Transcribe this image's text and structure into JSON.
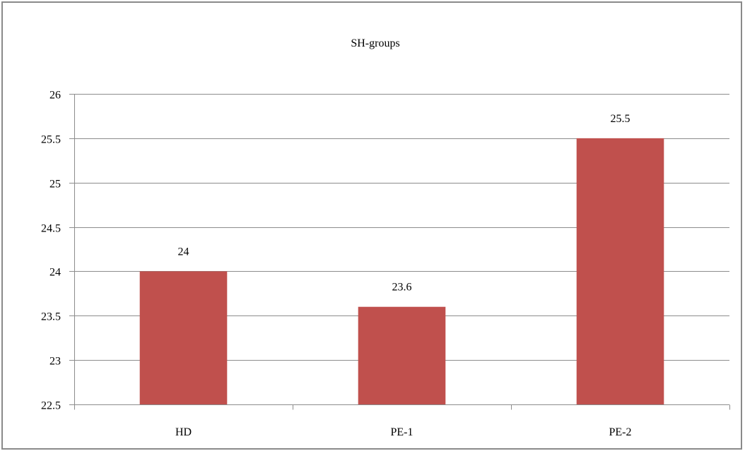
{
  "chart_data": {
    "type": "bar",
    "title": "SH-groups",
    "xlabel": "",
    "ylabel": "",
    "categories": [
      "HD",
      "PE-1",
      "PE-2"
    ],
    "values": [
      24,
      23.6,
      25.5
    ],
    "data_labels": [
      "24",
      "23.6",
      "25.5"
    ],
    "ylim": [
      22.5,
      26
    ],
    "yticks": [
      22.5,
      23,
      23.5,
      24,
      24.5,
      25,
      25.5,
      26
    ],
    "ytick_labels": [
      "22.5",
      "23",
      "23.5",
      "24",
      "24.5",
      "25",
      "25.5",
      "26"
    ],
    "grid": true,
    "legend": "none",
    "colors": {
      "bar": "#c0504d",
      "grid": "#8c8c8c",
      "axis": "#8c8c8c",
      "text": "#000000"
    }
  }
}
